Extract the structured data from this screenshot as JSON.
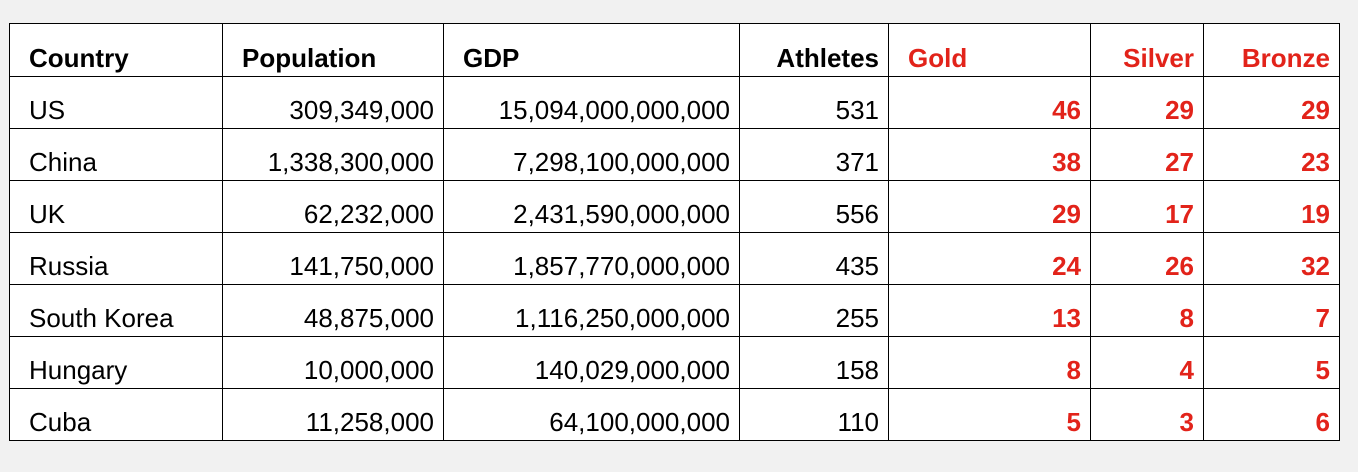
{
  "table": {
    "headers": {
      "country": "Country",
      "population": "Population",
      "gdp": "GDP",
      "athletes": "Athletes",
      "gold": "Gold",
      "silver": "Silver",
      "bronze": "Bronze"
    },
    "rows": [
      {
        "country": "US",
        "population": "309,349,000",
        "gdp": "15,094,000,000,000",
        "athletes": "531",
        "gold": "46",
        "silver": "29",
        "bronze": "29"
      },
      {
        "country": "China",
        "population": "1,338,300,000",
        "gdp": "7,298,100,000,000",
        "athletes": "371",
        "gold": "38",
        "silver": "27",
        "bronze": "23"
      },
      {
        "country": "UK",
        "population": "62,232,000",
        "gdp": "2,431,590,000,000",
        "athletes": "556",
        "gold": "29",
        "silver": "17",
        "bronze": "19"
      },
      {
        "country": "Russia",
        "population": "141,750,000",
        "gdp": "1,857,770,000,000",
        "athletes": "435",
        "gold": "24",
        "silver": "26",
        "bronze": "32"
      },
      {
        "country": "South Korea",
        "population": "48,875,000",
        "gdp": "1,116,250,000,000",
        "athletes": "255",
        "gold": "13",
        "silver": "8",
        "bronze": "7"
      },
      {
        "country": "Hungary",
        "population": "10,000,000",
        "gdp": "140,029,000,000",
        "athletes": "158",
        "gold": "8",
        "silver": "4",
        "bronze": "5"
      },
      {
        "country": "Cuba",
        "population": "11,258,000",
        "gdp": "64,100,000,000",
        "athletes": "110",
        "gold": "5",
        "silver": "3",
        "bronze": "6"
      }
    ]
  },
  "colors": {
    "medal_text": "#e2231a",
    "background": "#f1f1f1",
    "cell_background": "#ffffff"
  }
}
